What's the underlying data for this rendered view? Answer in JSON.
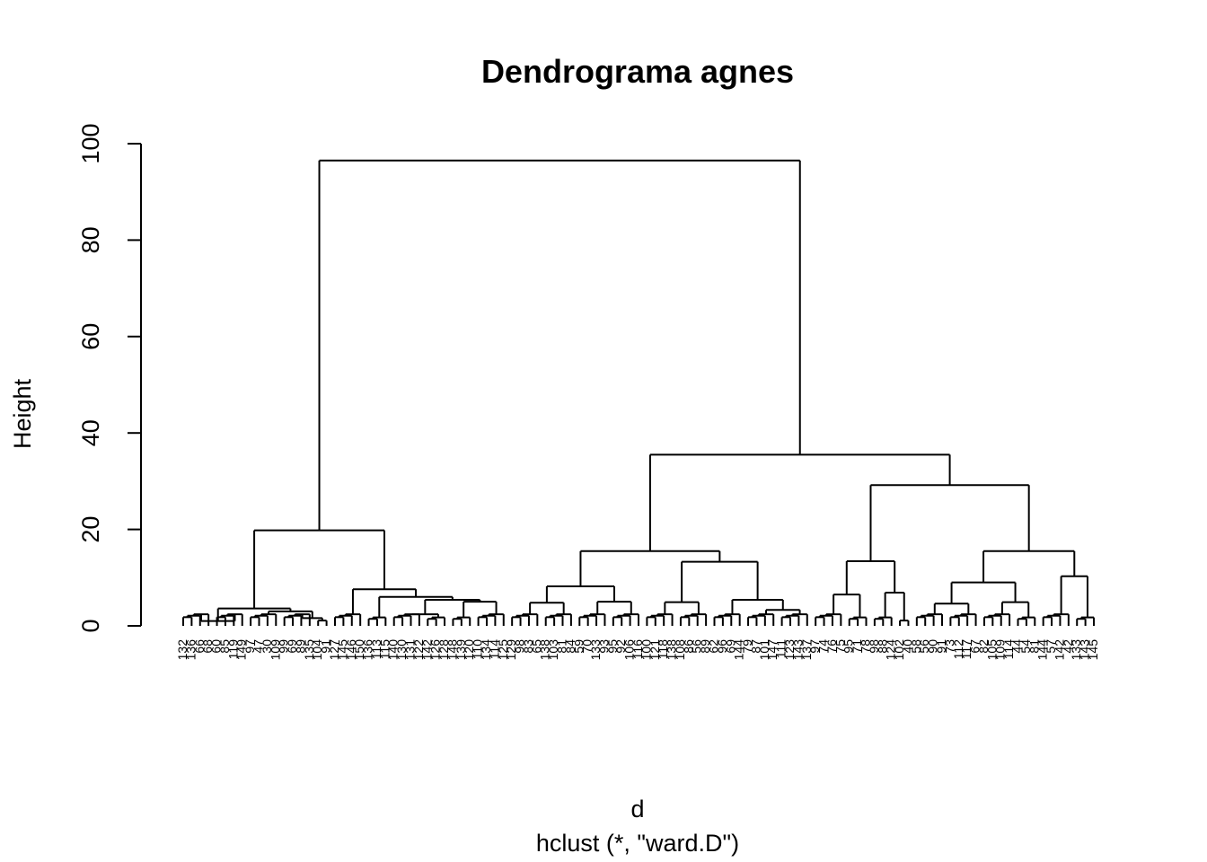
{
  "chart_data": {
    "type": "dendrogram",
    "title": "Dendrograma agnes",
    "ylabel": "Height",
    "xlabel": "d",
    "sublabel": "hclust (*, \"ward.D\")",
    "ylim": [
      0,
      100
    ],
    "yticks": [
      0,
      20,
      40,
      60,
      80,
      100
    ],
    "root": {
      "h": 96.5,
      "children": [
        {
          "h": 19.8,
          "children": [
            {
              "h": 3.6,
              "children": [
                {
                  "h": 1.0,
                  "children": [
                    {
                      "leaves": [
                        "132",
                        "136",
                        "66",
                        "68"
                      ]
                    },
                    {
                      "leaves": [
                        "60",
                        "85",
                        "119",
                        "149"
                      ]
                    }
                  ]
                },
                {
                  "h": 3.0,
                  "children": [
                    {
                      "leaves": [
                        "97",
                        "47",
                        "30",
                        "109"
                      ]
                    },
                    {
                      "h": 1.6,
                      "children": [
                        {
                          "leaves": [
                            "99",
                            "69",
                            "89",
                            "135"
                          ]
                        },
                        {
                          "leaves": [
                            "104",
                            "91"
                          ]
                        }
                      ]
                    }
                  ]
                }
              ]
            },
            {
              "h": 7.6,
              "children": [
                {
                  "leaves": [
                    "127",
                    "145",
                    "146",
                    "150"
                  ]
                },
                {
                  "h": 6.0,
                  "children": [
                    {
                      "leaves": [
                        "136",
                        "113",
                        "115"
                      ]
                    },
                    {
                      "h": 5.4,
                      "children": [
                        {
                          "h": 2.4,
                          "children": [
                            {
                              "leaves": [
                                "140",
                                "130",
                                "131",
                                "122"
                              ]
                            },
                            {
                              "leaves": [
                                "142",
                                "126",
                                "128"
                              ]
                            }
                          ]
                        },
                        {
                          "h": 5.0,
                          "children": [
                            {
                              "leaves": [
                                "148",
                                "139",
                                "120"
                              ]
                            },
                            {
                              "h": 3.8,
                              "children": [
                                {
                                  "leaves": [
                                    "110",
                                    "134",
                                    "114",
                                    "125"
                                  ]
                                }
                              ]
                            }
                          ]
                        }
                      ]
                    }
                  ]
                }
              ]
            }
          ]
        },
        {
          "h": 35.5,
          "children": [
            {
              "h": 15.5,
              "children": [
                {
                  "h": 8.2,
                  "children": [
                    {
                      "h": 4.8,
                      "children": [
                        {
                          "leaves": [
                            "129",
                            "98",
                            "83",
                            "65"
                          ]
                        },
                        {
                          "leaves": [
                            "138",
                            "103",
                            "81",
                            "84"
                          ]
                        }
                      ]
                    },
                    {
                      "h": 5.0,
                      "children": [
                        {
                          "leaves": [
                            "59",
                            "70",
                            "133",
                            "93"
                          ]
                        },
                        {
                          "leaves": [
                            "95",
                            "92",
                            "106",
                            "116"
                          ]
                        }
                      ]
                    }
                  ]
                },
                {
                  "h": 13.3,
                  "children": [
                    {
                      "h": 4.9,
                      "children": [
                        {
                          "leaves": [
                            "100",
                            "121",
                            "118",
                            "138"
                          ]
                        },
                        {
                          "leaves": [
                            "108",
                            "86",
                            "56",
                            "89"
                          ]
                        }
                      ]
                    },
                    {
                      "h": 5.4,
                      "children": [
                        {
                          "leaves": [
                            "62",
                            "96",
                            "69",
                            "144"
                          ]
                        },
                        {
                          "h": 3.3,
                          "children": [
                            {
                              "leaves": [
                                "79",
                                "87",
                                "101",
                                "147"
                              ]
                            },
                            {
                              "leaves": [
                                "111",
                                "123",
                                "143",
                                "137"
                              ]
                            }
                          ]
                        }
                      ]
                    }
                  ]
                }
              ]
            },
            {
              "h": 29.2,
              "children": [
                {
                  "h": 13.4,
                  "children": [
                    {
                      "h": 6.5,
                      "children": [
                        {
                          "leaves": [
                            "97",
                            "74",
                            "76",
                            "75"
                          ]
                        },
                        {
                          "leaves": [
                            "95",
                            "71",
                            "78"
                          ]
                        }
                      ]
                    },
                    {
                      "h": 6.9,
                      "children": [
                        {
                          "leaves": [
                            "98",
                            "88",
                            "124"
                          ]
                        },
                        {
                          "leaves": [
                            "102",
                            "40"
                          ]
                        }
                      ]
                    }
                  ]
                },
                {
                  "h": 15.5,
                  "children": [
                    {
                      "h": 9.0,
                      "children": [
                        {
                          "h": 4.6,
                          "children": [
                            {
                              "leaves": [
                                "58",
                                "56",
                                "90",
                                "91"
                              ]
                            },
                            {
                              "leaves": [
                                "73",
                                "112",
                                "117",
                                "67"
                              ]
                            }
                          ]
                        },
                        {
                          "h": 4.9,
                          "children": [
                            {
                              "leaves": [
                                "82",
                                "105",
                                "109",
                                "114"
                              ]
                            },
                            {
                              "leaves": [
                                "44",
                                "54",
                                "81"
                              ]
                            }
                          ]
                        }
                      ]
                    },
                    {
                      "h": 10.3,
                      "children": [
                        {
                          "leaves": [
                            "144",
                            "57",
                            "142",
                            "42"
                          ]
                        },
                        {
                          "leaves": [
                            "133",
                            "143",
                            "145"
                          ]
                        }
                      ]
                    }
                  ]
                }
              ]
            }
          ]
        }
      ]
    }
  }
}
